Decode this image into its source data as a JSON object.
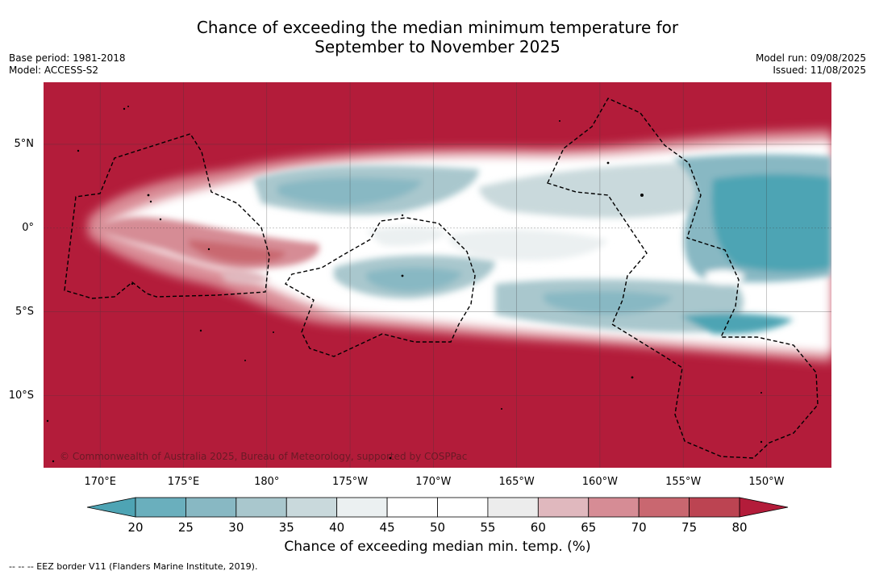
{
  "title": {
    "line1": "Chance of exceeding the median minimum temperature for",
    "line2": "September to November 2025"
  },
  "meta_left": {
    "base_period": "Base period: 1981-2018",
    "model": "Model: ACCESS-S2"
  },
  "meta_right": {
    "model_run": "Model run: 09/08/2025",
    "issued": "Issued: 11/08/2025"
  },
  "map": {
    "lat_ticks": [
      {
        "label": "5°N",
        "lat": 5
      },
      {
        "label": "0°",
        "lat": 0
      },
      {
        "label": "5°S",
        "lat": -5
      },
      {
        "label": "10°S",
        "lat": -10
      }
    ],
    "lon_ticks": [
      {
        "label": "170°E",
        "lon": 170
      },
      {
        "label": "175°E",
        "lon": 175
      },
      {
        "label": "180°",
        "lon": 180
      },
      {
        "label": "175°W",
        "lon": 185
      },
      {
        "label": "170°W",
        "lon": 190
      },
      {
        "label": "165°W",
        "lon": 195
      },
      {
        "label": "160°W",
        "lon": 200
      },
      {
        "label": "155°W",
        "lon": 205
      },
      {
        "label": "150°W",
        "lon": 210
      }
    ],
    "extent": {
      "lon_min": 166.6,
      "lon_max": 213.9,
      "lat_min": -14.3,
      "lat_max": 8.7
    },
    "background_color": "#b31c3a",
    "copyright": "© Commonwealth of Australia 2025, Bureau of Meteorology, supported by COSPPac"
  },
  "colorbar": {
    "ticks": [
      20,
      25,
      30,
      35,
      40,
      45,
      50,
      55,
      60,
      65,
      70,
      75,
      80
    ],
    "bins": [
      {
        "from": 20,
        "to": 25,
        "color": "#6aafbd"
      },
      {
        "from": 25,
        "to": 30,
        "color": "#88b8c3"
      },
      {
        "from": 30,
        "to": 35,
        "color": "#a9c7cd"
      },
      {
        "from": 35,
        "to": 40,
        "color": "#c9d9dc"
      },
      {
        "from": 40,
        "to": 45,
        "color": "#ebf0f1"
      },
      {
        "from": 45,
        "to": 50,
        "color": "#ffffff"
      },
      {
        "from": 50,
        "to": 55,
        "color": "#ffffff"
      },
      {
        "from": 55,
        "to": 60,
        "color": "#ececec"
      },
      {
        "from": 60,
        "to": 65,
        "color": "#e0b8be"
      },
      {
        "from": 65,
        "to": 70,
        "color": "#d68c95"
      },
      {
        "from": 70,
        "to": 75,
        "color": "#c96770"
      },
      {
        "from": 75,
        "to": 80,
        "color": "#bc4452"
      }
    ],
    "under_color": "#4ea4b4",
    "over_color": "#b31c3a",
    "label": "Chance of exceeding median min. temp. (%)"
  },
  "footnote": "--  --  -- EEZ border V11 (Flanders Marine Institute, 2019)."
}
